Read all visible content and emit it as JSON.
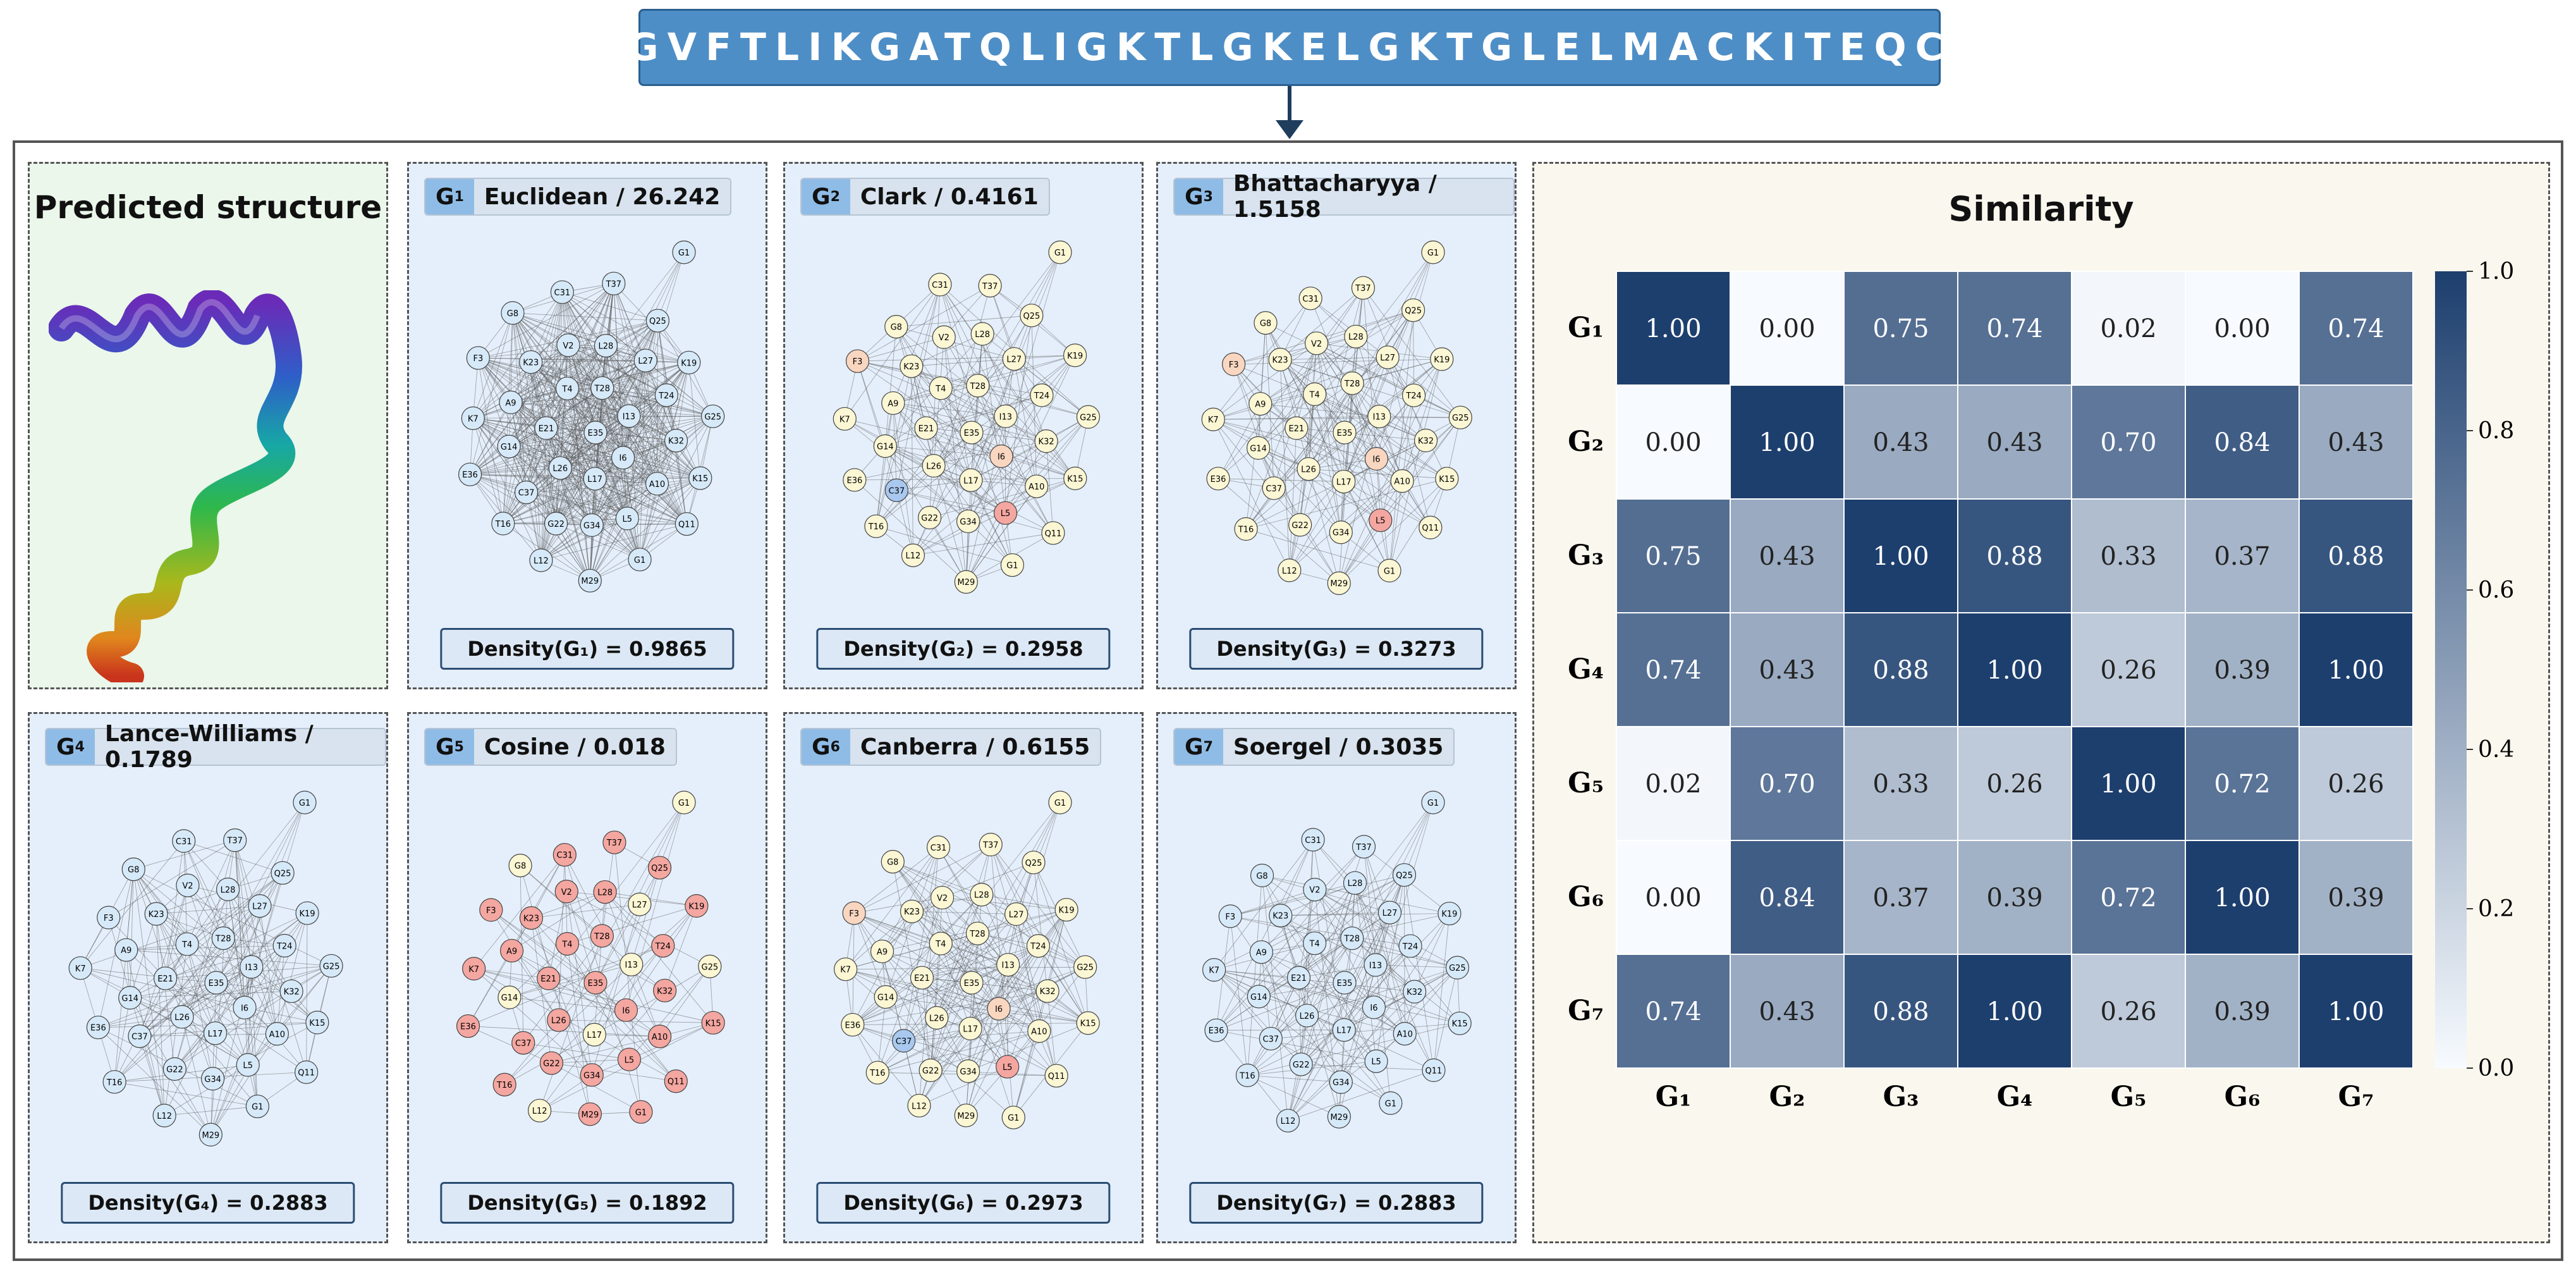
{
  "sequence": "GVFTLIKGATQLIGKTLGKELGKTGLELMACKITEQC",
  "predicted_title": "Predicted structure",
  "graphs": [
    {
      "id": "G1",
      "sub": "1",
      "metric": "Euclidean / 26.242",
      "density": "Density(G₁) = 0.9865",
      "density_value": 0.9865
    },
    {
      "id": "G2",
      "sub": "2",
      "metric": "Clark / 0.4161",
      "density": "Density(G₂) = 0.2958",
      "density_value": 0.2958
    },
    {
      "id": "G3",
      "sub": "3",
      "metric": "Bhattacharyya / 1.5158",
      "density": "Density(G₃) = 0.3273",
      "density_value": 0.3273
    },
    {
      "id": "G4",
      "sub": "4",
      "metric": "Lance-Williams / 0.1789",
      "density": "Density(G₄) = 0.2883",
      "density_value": 0.2883
    },
    {
      "id": "G5",
      "sub": "5",
      "metric": "Cosine / 0.018",
      "density": "Density(G₅) = 0.1892",
      "density_value": 0.1892
    },
    {
      "id": "G6",
      "sub": "6",
      "metric": "Canberra / 0.6155",
      "density": "Density(G₆) = 0.2973",
      "density_value": 0.2973
    },
    {
      "id": "G7",
      "sub": "7",
      "metric": "Soergel / 0.3035",
      "density": "Density(G₇) = 0.2883",
      "density_value": 0.2883
    }
  ],
  "node_labels": [
    "G1",
    "E35",
    "I6",
    "L17",
    "L26",
    "E21",
    "T4",
    "T28",
    "I13",
    "L5",
    "G34",
    "G22",
    "C37",
    "G14",
    "A9",
    "K23",
    "V2",
    "L28",
    "L27",
    "T24",
    "K32",
    "A10",
    "M29",
    "L12",
    "T16",
    "E36",
    "K7",
    "F3",
    "G8",
    "C31",
    "T37",
    "Q25",
    "K19",
    "G25",
    "K15",
    "Q11"
  ],
  "sim_title": "Similarity",
  "chart_data": {
    "type": "heatmap",
    "title": "Similarity",
    "row_labels": [
      "G₁",
      "G₂",
      "G₃",
      "G₄",
      "G₅",
      "G₆",
      "G₇"
    ],
    "col_labels": [
      "G₁",
      "G₂",
      "G₃",
      "G₄",
      "G₅",
      "G₆",
      "G₇"
    ],
    "values": [
      [
        1.0,
        0.0,
        0.75,
        0.74,
        0.02,
        0.0,
        0.74
      ],
      [
        0.0,
        1.0,
        0.43,
        0.43,
        0.7,
        0.84,
        0.43
      ],
      [
        0.75,
        0.43,
        1.0,
        0.88,
        0.33,
        0.37,
        0.88
      ],
      [
        0.74,
        0.43,
        0.88,
        1.0,
        0.26,
        0.39,
        1.0
      ],
      [
        0.02,
        0.7,
        0.33,
        0.26,
        1.0,
        0.72,
        0.26
      ],
      [
        0.0,
        0.84,
        0.37,
        0.39,
        0.72,
        1.0,
        0.39
      ],
      [
        0.74,
        0.43,
        0.88,
        1.0,
        0.26,
        0.39,
        1.0
      ]
    ],
    "colorbar_ticks": [
      "0.0",
      "0.2",
      "0.4",
      "0.6",
      "0.8",
      "1.0"
    ],
    "vmin": 0.0,
    "vmax": 1.0,
    "colormap": [
      "#f7fbff",
      "#1d3f6e"
    ]
  }
}
